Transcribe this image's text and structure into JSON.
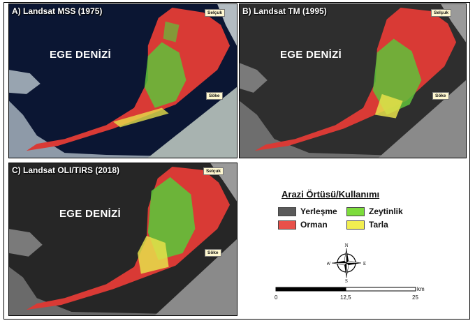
{
  "panels": [
    {
      "id": "A",
      "title": "A) Landsat MSS (1975)",
      "sea_label": "EGE DENİZİ",
      "towns": [
        "Selçuk",
        "Söke"
      ]
    },
    {
      "id": "B",
      "title": "B) Landsat TM (1995)",
      "sea_label": "EGE DENİZİ",
      "towns": [
        "Selçuk",
        "Söke"
      ]
    },
    {
      "id": "C",
      "title": "C) Landsat OLI/TIRS (2018)",
      "sea_label": "EGE DENİZİ",
      "towns": [
        "Selçuk",
        "Söke"
      ]
    }
  ],
  "legend": {
    "title": "Arazi Örtüsü/Kullanımı",
    "items": [
      {
        "label": "Yerleşme",
        "color": "#5a5a5a"
      },
      {
        "label": "Zeytinlik",
        "color": "#7ddc3c"
      },
      {
        "label": "Orman",
        "color": "#e8504a"
      },
      {
        "label": "Tarla",
        "color": "#f2ee50"
      }
    ]
  },
  "north_arrow": {
    "N": "N",
    "E": "E",
    "S": "S",
    "W": "W"
  },
  "scale_bar": {
    "ticks": [
      "0",
      "12,5",
      "25"
    ],
    "unit": "km"
  },
  "colors": {
    "forest": "#d93a35",
    "olive": "#5fc23a",
    "field": "#e6e04a",
    "sea_a": "#0b1633",
    "sea_gray": "#2e2e2e"
  }
}
